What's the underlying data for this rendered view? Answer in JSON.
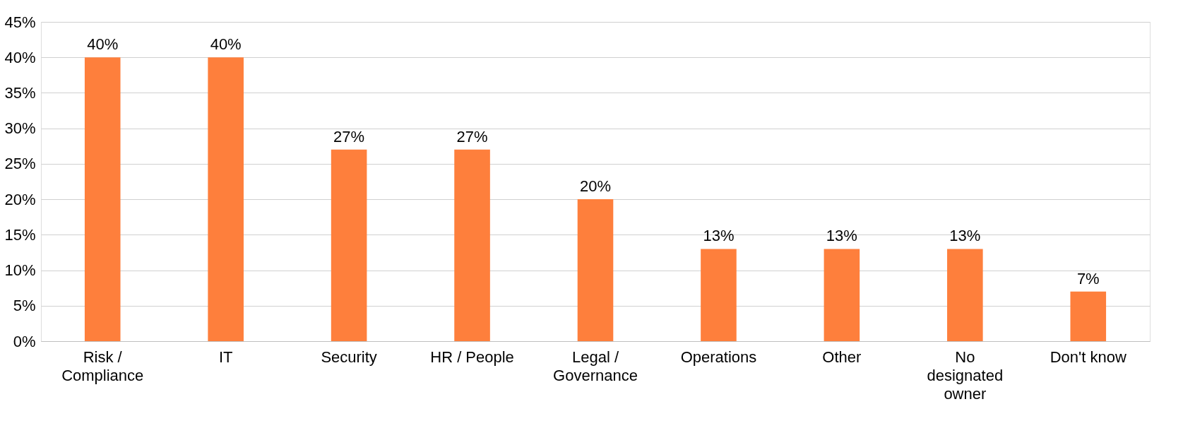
{
  "chart_data": {
    "type": "bar",
    "categories": [
      "Risk /\nCompliance",
      "IT",
      "Security",
      "HR / People",
      "Legal /\nGovernance",
      "Operations",
      "Other",
      "No\ndesignated\nowner",
      "Don't know"
    ],
    "values": [
      40,
      40,
      27,
      27,
      20,
      13,
      13,
      13,
      7
    ],
    "value_labels": [
      "40%",
      "40%",
      "27%",
      "27%",
      "20%",
      "13%",
      "13%",
      "13%",
      "7%"
    ],
    "color": "#fe7f3c",
    "ylim": [
      0,
      45
    ],
    "yticks": [
      {
        "value": 0,
        "label": "0%"
      },
      {
        "value": 5,
        "label": "5%"
      },
      {
        "value": 10,
        "label": "10%"
      },
      {
        "value": 15,
        "label": "15%"
      },
      {
        "value": 20,
        "label": "20%"
      },
      {
        "value": 25,
        "label": "25%"
      },
      {
        "value": 30,
        "label": "30%"
      },
      {
        "value": 35,
        "label": "35%"
      },
      {
        "value": 40,
        "label": "40%"
      },
      {
        "value": 45,
        "label": "45%"
      }
    ],
    "grid": "y"
  }
}
